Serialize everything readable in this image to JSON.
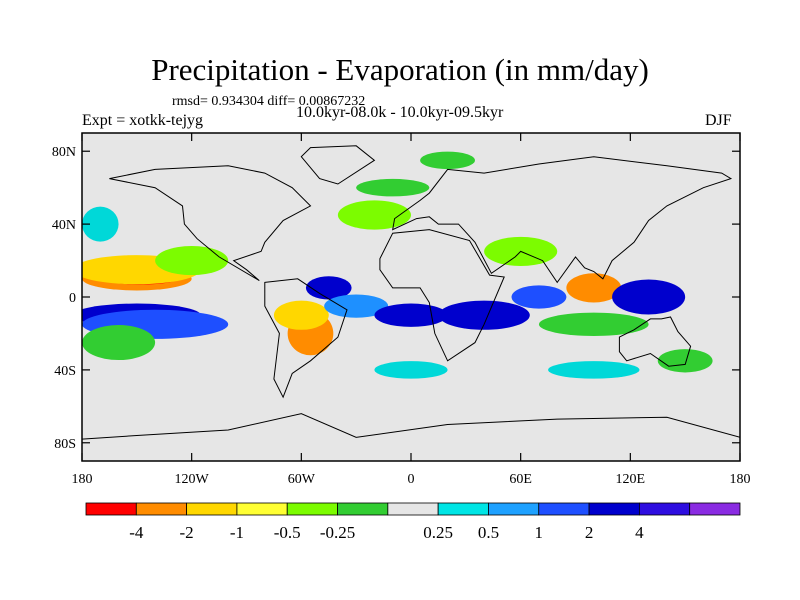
{
  "title": "Precipitation - Evaporation (in mm/day)",
  "stats": "rmsd= 0.934304 diff= 0.00867232",
  "experiment": "Expt = xotkk-tejyg",
  "period": "10.0kyr-08.0k - 10.0kyr-09.5kyr",
  "season": "DJF",
  "map": {
    "type": "filled-contour map",
    "background_color": "#e6e6e6",
    "lon_range": [
      -180,
      180
    ],
    "lat_range": [
      -90,
      90
    ],
    "lat_ticks": [
      {
        "value": 80,
        "label": "80N"
      },
      {
        "value": 40,
        "label": "40N"
      },
      {
        "value": 0,
        "label": "0"
      },
      {
        "value": -40,
        "label": "40S"
      },
      {
        "value": -80,
        "label": "80S"
      }
    ],
    "lon_ticks": [
      {
        "value": -180,
        "label": "180"
      },
      {
        "value": -120,
        "label": "120W"
      },
      {
        "value": -60,
        "label": "60W"
      },
      {
        "value": 0,
        "label": "0"
      },
      {
        "value": 60,
        "label": "60E"
      },
      {
        "value": 120,
        "label": "120E"
      },
      {
        "value": 180,
        "label": "180"
      }
    ],
    "anomaly_regions": [
      {
        "lon": -150,
        "lat": 10,
        "w": 60,
        "h": 8,
        "color": "#ff8c00"
      },
      {
        "lon": -148,
        "lat": 10,
        "w": 40,
        "h": 4,
        "color": "#ff0000"
      },
      {
        "lon": -150,
        "lat": 15,
        "w": 70,
        "h": 10,
        "color": "#ffd700"
      },
      {
        "lon": -150,
        "lat": -10,
        "w": 70,
        "h": 8,
        "color": "#0000cd"
      },
      {
        "lon": -140,
        "lat": -15,
        "w": 80,
        "h": 10,
        "color": "#1e4fff"
      },
      {
        "lon": -160,
        "lat": -25,
        "w": 40,
        "h": 12,
        "color": "#32cd32"
      },
      {
        "lon": -120,
        "lat": 20,
        "w": 40,
        "h": 10,
        "color": "#7cfc00"
      },
      {
        "lon": -55,
        "lat": -20,
        "w": 25,
        "h": 15,
        "color": "#ff8c00"
      },
      {
        "lon": -60,
        "lat": -10,
        "w": 30,
        "h": 10,
        "color": "#ffd700"
      },
      {
        "lon": -45,
        "lat": 5,
        "w": 25,
        "h": 8,
        "color": "#0000cd"
      },
      {
        "lon": -30,
        "lat": -5,
        "w": 35,
        "h": 8,
        "color": "#1e90ff"
      },
      {
        "lon": 0,
        "lat": -10,
        "w": 40,
        "h": 8,
        "color": "#0000cd"
      },
      {
        "lon": 40,
        "lat": -10,
        "w": 50,
        "h": 10,
        "color": "#0000cd"
      },
      {
        "lon": 70,
        "lat": 0,
        "w": 30,
        "h": 8,
        "color": "#1e4fff"
      },
      {
        "lon": 100,
        "lat": 5,
        "w": 30,
        "h": 10,
        "color": "#ff8c00"
      },
      {
        "lon": 130,
        "lat": 0,
        "w": 40,
        "h": 12,
        "color": "#0000cd"
      },
      {
        "lon": 100,
        "lat": -15,
        "w": 60,
        "h": 8,
        "color": "#32cd32"
      },
      {
        "lon": 60,
        "lat": 25,
        "w": 40,
        "h": 10,
        "color": "#7cfc00"
      },
      {
        "lon": -20,
        "lat": 45,
        "w": 40,
        "h": 10,
        "color": "#7cfc00"
      },
      {
        "lon": -170,
        "lat": 40,
        "w": 20,
        "h": 12,
        "color": "#00d8d8"
      },
      {
        "lon": -10,
        "lat": 60,
        "w": 40,
        "h": 6,
        "color": "#32cd32"
      },
      {
        "lon": 20,
        "lat": 75,
        "w": 30,
        "h": 6,
        "color": "#32cd32"
      },
      {
        "lon": 0,
        "lat": -40,
        "w": 40,
        "h": 6,
        "color": "#00d8d8"
      },
      {
        "lon": 100,
        "lat": -40,
        "w": 50,
        "h": 6,
        "color": "#00d8d8"
      },
      {
        "lon": 150,
        "lat": -35,
        "w": 30,
        "h": 8,
        "color": "#32cd32"
      }
    ]
  },
  "colorbar": {
    "colors": [
      "#ff0000",
      "#ff8c00",
      "#ffd700",
      "#ffff33",
      "#7cfc00",
      "#32cd32",
      "#e6e6e6",
      "#00e5e5",
      "#1ea1ff",
      "#1e4fff",
      "#0000cd",
      "#2e0ee0",
      "#8a2be2"
    ],
    "labels": [
      "-4",
      "-2",
      "-1",
      "-0.5",
      "-0.25",
      "0.25",
      "0.5",
      "1",
      "2",
      "4"
    ]
  }
}
